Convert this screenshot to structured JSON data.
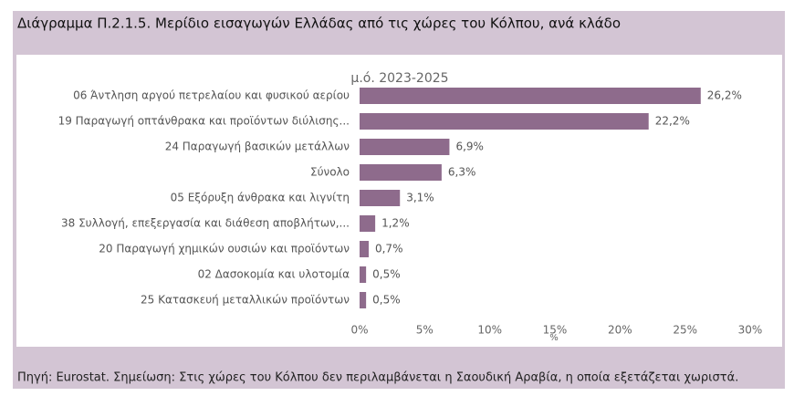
{
  "chart_data": {
    "type": "bar",
    "orientation": "horizontal",
    "title": "Διάγραμμα Π.2.1.5. Μερίδιο εισαγωγών Ελλάδας από τις χώρες του Κόλπου, ανά κλάδο",
    "subtitle": "μ.ό. 2023-2025",
    "caption": "Πηγή: Eurostat. Σημείωση: Στις χώρες του Κόλπου δεν περιλαμβάνεται η Σαουδική Αραβία, η οποία εξετάζεται χωριστά.",
    "x_label": "%",
    "categories": [
      "06 Άντληση αργού πετρελαίου και φυσικού αερίου",
      "19 Παραγωγή οπτάνθρακα και προϊόντων διύλισης...",
      "24 Παραγωγή βασικών μετάλλων",
      "Σύνολο",
      "05 Εξόρυξη άνθρακα και λιγνίτη",
      "38 Συλλογή, επεξεργασία και διάθεση αποβλήτων,...",
      "20 Παραγωγή χημικών ουσιών και προϊόντων",
      "02 Δασοκομία και υλοτομία",
      "25 Κατασκευή μεταλλικών προϊόντων"
    ],
    "values": [
      26.2,
      22.2,
      6.9,
      6.3,
      3.1,
      1.2,
      0.7,
      0.5,
      0.5
    ],
    "value_labels": [
      "26,2%",
      "22,2%",
      "6,9%",
      "6,3%",
      "3,1%",
      "1,2%",
      "0,7%",
      "0,5%",
      "0,5%"
    ],
    "color": "#8e6b8c",
    "xlim": [
      0,
      30
    ],
    "xticks": [
      {
        "value": 0,
        "label": "0%"
      },
      {
        "value": 5,
        "label": "5%"
      },
      {
        "value": 10,
        "label": "10%"
      },
      {
        "value": 15,
        "label": "15%"
      },
      {
        "value": 20,
        "label": "20%"
      },
      {
        "value": 25,
        "label": "25%"
      },
      {
        "value": 30,
        "label": "30%"
      }
    ]
  }
}
